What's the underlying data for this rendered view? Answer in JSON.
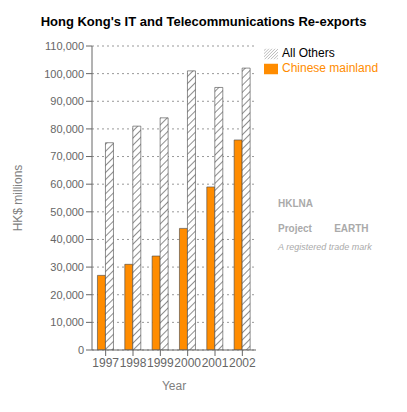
{
  "chart_data": {
    "type": "bar",
    "title": "Hong Kong's IT and Telecommunications Re-exports",
    "xlabel": "Year",
    "ylabel": "HK$ millions",
    "categories": [
      "1997",
      "1998",
      "1999",
      "2000",
      "2001",
      "2002"
    ],
    "series": [
      {
        "name": "Chinese mainland",
        "color": "#FF8C00",
        "values": [
          27000,
          31000,
          34000,
          44000,
          59000,
          76000
        ]
      },
      {
        "name": "All Others",
        "color": "#ffffff",
        "values": [
          75000,
          81000,
          84000,
          101000,
          95000,
          102000
        ]
      }
    ],
    "ylim": [
      0,
      110000
    ],
    "yticks": [
      0,
      {
        "value": 10000,
        "label": "10,000"
      },
      {
        "value": 20000,
        "label": "20,000"
      },
      {
        "value": 30000,
        "label": "30,000"
      },
      {
        "value": 40000,
        "label": "40,000"
      },
      {
        "value": 50000,
        "label": "50,000"
      },
      {
        "value": 60000,
        "label": "60,000"
      },
      {
        "value": 70000,
        "label": "70,000"
      },
      {
        "value": 80000,
        "label": "80,000"
      },
      {
        "value": 90000,
        "label": "90,000"
      },
      {
        "value": 100000,
        "label": "100,000"
      },
      {
        "value": 110000,
        "label": "110,000"
      }
    ],
    "grid": true,
    "legend": "right",
    "annotations": [
      "HKLNA",
      "Project        EARTH",
      "A registered trade mark"
    ]
  }
}
